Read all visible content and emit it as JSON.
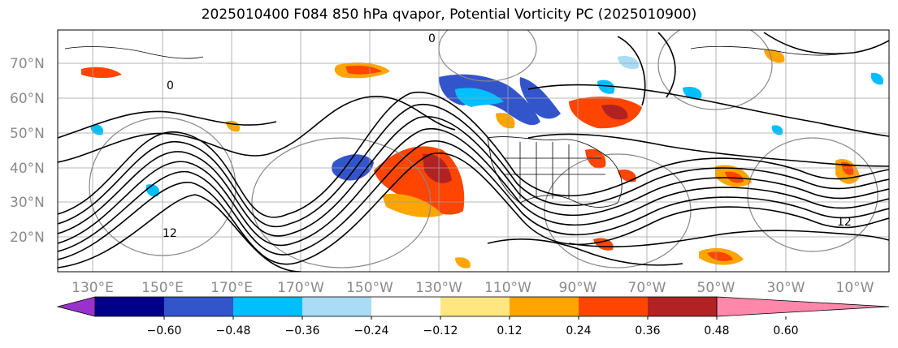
{
  "title": "2025010400 F084 850 hPa qvapor, Potential Vorticity PC (2025010900)",
  "map": {
    "lat_labels": [
      "70°N",
      "60°N",
      "50°N",
      "40°N",
      "30°N",
      "20°N"
    ],
    "lon_labels": [
      "130°E",
      "150°E",
      "170°E",
      "170°W",
      "150°W",
      "130°W",
      "110°W",
      "90°W",
      "70°W",
      "50°W",
      "30°W",
      "10°W"
    ],
    "contour_labels": [
      "0",
      "0",
      "12",
      "12"
    ]
  },
  "colorbar": {
    "colors": [
      "#9932cc",
      "#000088",
      "#3355cc",
      "#00bfff",
      "#aadcf5",
      "#ffffff",
      "#ffe680",
      "#ffa500",
      "#ff4500",
      "#b22222",
      "#ff88aa"
    ],
    "ticks": [
      "−0.60",
      "−0.48",
      "−0.36",
      "−0.24",
      "−0.12",
      "0.12",
      "0.24",
      "0.36",
      "0.48",
      "0.60"
    ]
  }
}
